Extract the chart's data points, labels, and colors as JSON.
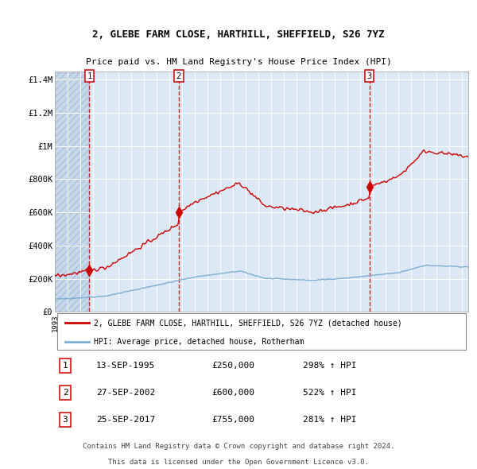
{
  "title1": "2, GLEBE FARM CLOSE, HARTHILL, SHEFFIELD, S26 7YZ",
  "title2": "Price paid vs. HM Land Registry's House Price Index (HPI)",
  "sale_labels": [
    "1",
    "2",
    "3"
  ],
  "sale_info": [
    {
      "label": "1",
      "date": "13-SEP-1995",
      "price": "£250,000",
      "change": "298% ↑ HPI"
    },
    {
      "label": "2",
      "date": "27-SEP-2002",
      "price": "£600,000",
      "change": "522% ↑ HPI"
    },
    {
      "label": "3",
      "date": "25-SEP-2017",
      "price": "£755,000",
      "change": "281% ↑ HPI"
    }
  ],
  "legend_line1": "2, GLEBE FARM CLOSE, HARTHILL, SHEFFIELD, S26 7YZ (detached house)",
  "legend_line2": "HPI: Average price, detached house, Rotherham",
  "footer1": "Contains HM Land Registry data © Crown copyright and database right 2024.",
  "footer2": "This data is licensed under the Open Government Licence v3.0.",
  "hpi_line_color": "#7bafd4",
  "price_line_color": "#cc0000",
  "plot_bg": "#dce8f5",
  "hatch_bg": "#c8d8e8",
  "ylim": [
    0,
    1450000
  ],
  "yticks": [
    0,
    200000,
    400000,
    600000,
    800000,
    1000000,
    1200000,
    1400000
  ],
  "ytick_labels": [
    "£0",
    "£200K",
    "£400K",
    "£600K",
    "£800K",
    "£1M",
    "£1.2M",
    "£1.4M"
  ],
  "xlim_start": 1993.0,
  "xlim_end": 2025.5,
  "sale_years": [
    1995.7083,
    2002.7361,
    2017.7222
  ],
  "sale_prices": [
    250000,
    600000,
    755000
  ]
}
